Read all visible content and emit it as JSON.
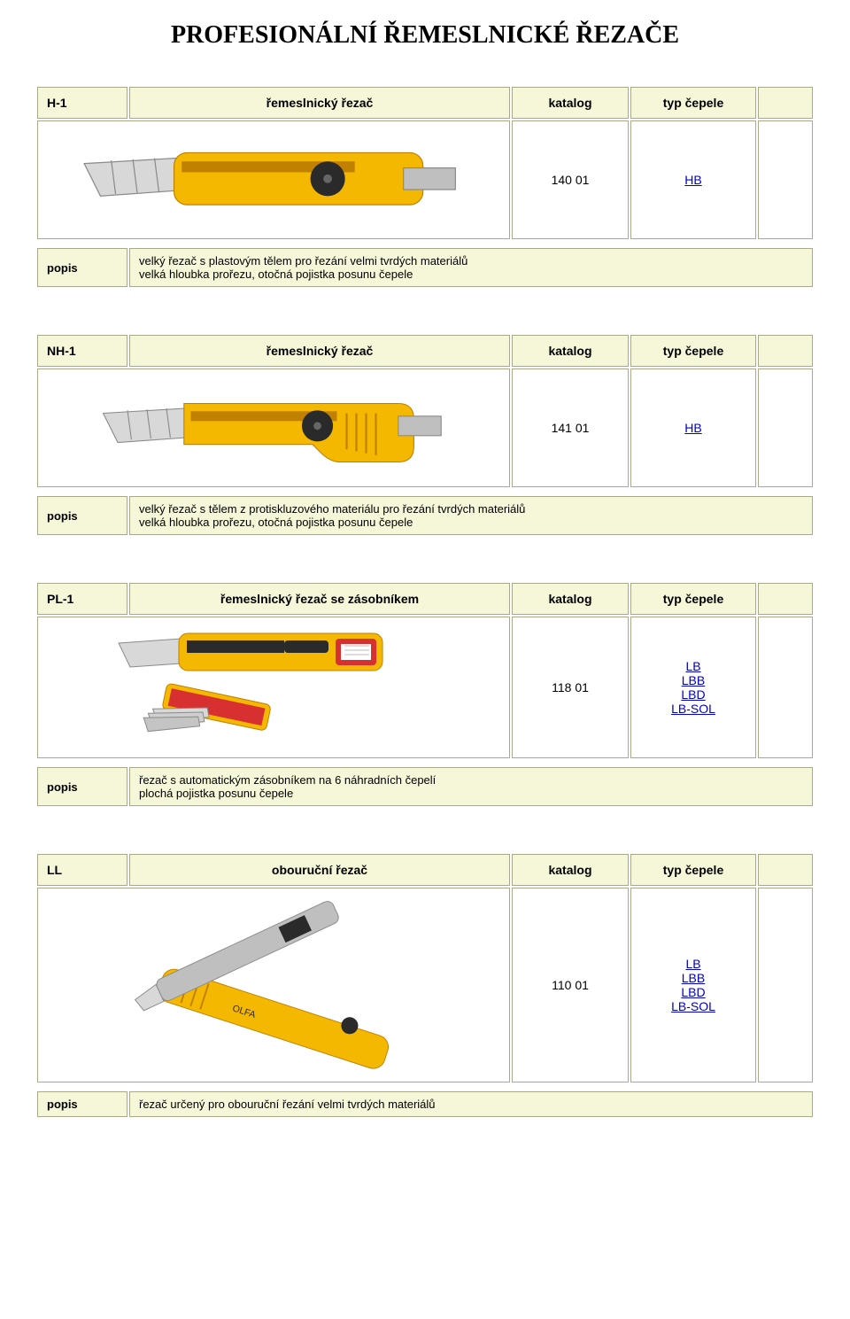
{
  "page_title": "PROFESIONÁLNÍ ŘEMESLNICKÉ ŘEZAČE",
  "common": {
    "label_katalog": "katalog",
    "label_typ_cepele": "typ čepele",
    "label_popis": "popis"
  },
  "sections": [
    {
      "code": "H-1",
      "name": "řemeslnický řezač",
      "katalog": "140 01",
      "blade_links": [
        "HB"
      ],
      "popis": "velký řezač s plastovým tělem pro řezání velmi tvrdých materiálů\nvelká hloubka prořezu, otočná pojistka posunu čepele",
      "image_svg": "h1"
    },
    {
      "code": "NH-1",
      "name": "řemeslnický řezač",
      "katalog": "141 01",
      "blade_links": [
        "HB"
      ],
      "popis": "velký řezač s tělem z protiskluzového materiálu pro řezání tvrdých materiálů\nvelká hloubka prořezu, otočná pojistka posunu čepele",
      "image_svg": "nh1"
    },
    {
      "code": "PL-1",
      "name": "řemeslnický řezač se zásobníkem",
      "katalog": "118 01",
      "blade_links": [
        "LB",
        "LBB",
        "LBD",
        "LB-SOL"
      ],
      "popis": "řezač s automatickým zásobníkem na 6 náhradních čepelí\nplochá pojistka posunu čepele",
      "image_svg": "pl1"
    },
    {
      "code": "LL",
      "name": "obouruční řezač",
      "katalog": "110 01",
      "blade_links": [
        "LB",
        "LBB",
        "LBD",
        "LB-SOL"
      ],
      "popis": "řezač určený pro obouruční řezání velmi tvrdých materiálů",
      "image_svg": "ll"
    }
  ],
  "svg_defs": {
    "colors": {
      "body_yellow": "#f5b800",
      "body_orange": "#e88a00",
      "blade_light": "#d8d8d8",
      "blade_mid": "#bfbfbf",
      "blade_dark": "#8a8a8a",
      "black": "#2a2a2a",
      "red": "#d83030"
    }
  }
}
